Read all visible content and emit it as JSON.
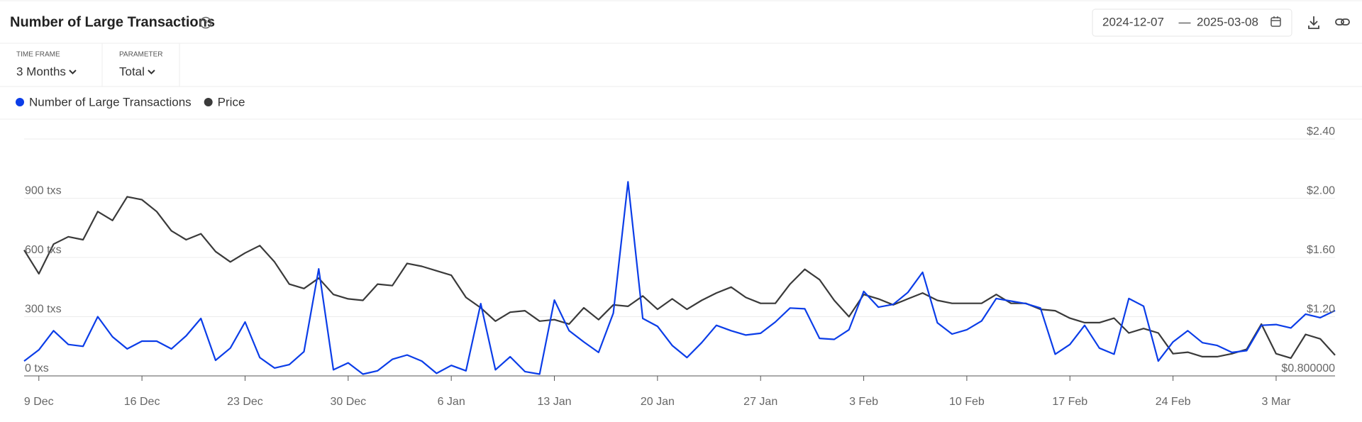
{
  "header": {
    "title": "Number of Large Transactions",
    "date_from": "2024-12-07",
    "date_separator": "—",
    "date_to": "2025-03-08"
  },
  "filters": [
    {
      "label": "TIME FRAME",
      "value": "3 Months"
    },
    {
      "label": "PARAMETER",
      "value": "Total"
    }
  ],
  "chart_data": {
    "type": "line",
    "x": [
      "2024-12-08",
      "2024-12-09",
      "2024-12-10",
      "2024-12-11",
      "2024-12-12",
      "2024-12-13",
      "2024-12-14",
      "2024-12-15",
      "2024-12-16",
      "2024-12-17",
      "2024-12-18",
      "2024-12-19",
      "2024-12-20",
      "2024-12-21",
      "2024-12-22",
      "2024-12-23",
      "2024-12-24",
      "2024-12-25",
      "2024-12-26",
      "2024-12-27",
      "2024-12-28",
      "2024-12-29",
      "2024-12-30",
      "2024-12-31",
      "2025-01-01",
      "2025-01-02",
      "2025-01-03",
      "2025-01-04",
      "2025-01-05",
      "2025-01-06",
      "2025-01-07",
      "2025-01-08",
      "2025-01-09",
      "2025-01-10",
      "2025-01-11",
      "2025-01-12",
      "2025-01-13",
      "2025-01-14",
      "2025-01-15",
      "2025-01-16",
      "2025-01-17",
      "2025-01-18",
      "2025-01-19",
      "2025-01-20",
      "2025-01-21",
      "2025-01-22",
      "2025-01-23",
      "2025-01-24",
      "2025-01-25",
      "2025-01-26",
      "2025-01-27",
      "2025-01-28",
      "2025-01-29",
      "2025-01-30",
      "2025-01-31",
      "2025-02-01",
      "2025-02-02",
      "2025-02-03",
      "2025-02-04",
      "2025-02-05",
      "2025-02-06",
      "2025-02-07",
      "2025-02-08",
      "2025-02-09",
      "2025-02-10",
      "2025-02-11",
      "2025-02-12",
      "2025-02-13",
      "2025-02-14",
      "2025-02-15",
      "2025-02-16",
      "2025-02-17",
      "2025-02-18",
      "2025-02-19",
      "2025-02-20",
      "2025-02-21",
      "2025-02-22",
      "2025-02-23",
      "2025-02-24",
      "2025-02-25",
      "2025-02-26",
      "2025-02-27",
      "2025-02-28",
      "2025-03-01",
      "2025-03-02",
      "2025-03-03",
      "2025-03-04",
      "2025-03-05",
      "2025-03-06",
      "2025-03-07"
    ],
    "xlim": [
      "2024-12-08",
      "2025-03-07"
    ],
    "xticks": [
      {
        "value": "2024-12-09",
        "label": "9 Dec"
      },
      {
        "value": "2024-12-16",
        "label": "16 Dec"
      },
      {
        "value": "2024-12-23",
        "label": "23 Dec"
      },
      {
        "value": "2024-12-30",
        "label": "30 Dec"
      },
      {
        "value": "2025-01-06",
        "label": "6 Jan"
      },
      {
        "value": "2025-01-13",
        "label": "13 Jan"
      },
      {
        "value": "2025-01-20",
        "label": "20 Jan"
      },
      {
        "value": "2025-01-27",
        "label": "27 Jan"
      },
      {
        "value": "2025-02-03",
        "label": "3 Feb"
      },
      {
        "value": "2025-02-10",
        "label": "10 Feb"
      },
      {
        "value": "2025-02-17",
        "label": "17 Feb"
      },
      {
        "value": "2025-02-24",
        "label": "24 Feb"
      },
      {
        "value": "2025-03-03",
        "label": "3 Mar"
      }
    ],
    "ylim": [
      0,
      1200
    ],
    "yticks": [
      {
        "value": 0,
        "label": "0 txs"
      },
      {
        "value": 300,
        "label": "300 txs"
      },
      {
        "value": 600,
        "label": "600 txs"
      },
      {
        "value": 900,
        "label": "900 txs"
      }
    ],
    "y2lim": [
      0.8,
      2.4
    ],
    "y2ticks": [
      {
        "value": 0.8,
        "label": "$0.800000"
      },
      {
        "value": 1.2,
        "label": "$1.20"
      },
      {
        "value": 1.6,
        "label": "$1.60"
      },
      {
        "value": 2.0,
        "label": "$2.00"
      },
      {
        "value": 2.4,
        "label": "$2.40"
      }
    ],
    "grid": true,
    "legend": "top-left",
    "series": [
      {
        "name": "Number of Large Transactions",
        "color": "#0b3de8",
        "axis": "y",
        "values": [
          75,
          132,
          229,
          159,
          150,
          300,
          198,
          137,
          176,
          176,
          137,
          203,
          291,
          79,
          141,
          273,
          93,
          40,
          57,
          123,
          542,
          31,
          66,
          9,
          26,
          84,
          106,
          75,
          13,
          53,
          26,
          366,
          31,
          97,
          22,
          9,
          384,
          229,
          172,
          119,
          318,
          983,
          291,
          251,
          154,
          93,
          168,
          256,
          229,
          207,
          216,
          273,
          344,
          340,
          190,
          185,
          234,
          428,
          348,
          362,
          423,
          525,
          269,
          212,
          234,
          278,
          392,
          379,
          366,
          344,
          110,
          159,
          256,
          141,
          110,
          392,
          353,
          75,
          172,
          229,
          168,
          154,
          119,
          128,
          256,
          260,
          243,
          313,
          295,
          331
        ]
      },
      {
        "name": "Price",
        "color": "#3a3a3a",
        "axis": "y2",
        "values": [
          1.65,
          1.49,
          1.69,
          1.74,
          1.72,
          1.91,
          1.85,
          2.01,
          1.99,
          1.91,
          1.78,
          1.72,
          1.76,
          1.64,
          1.57,
          1.63,
          1.68,
          1.57,
          1.42,
          1.39,
          1.46,
          1.35,
          1.32,
          1.31,
          1.42,
          1.41,
          1.56,
          1.54,
          1.51,
          1.48,
          1.33,
          1.26,
          1.17,
          1.23,
          1.24,
          1.17,
          1.18,
          1.15,
          1.26,
          1.18,
          1.28,
          1.27,
          1.34,
          1.25,
          1.32,
          1.25,
          1.31,
          1.36,
          1.4,
          1.33,
          1.29,
          1.29,
          1.42,
          1.52,
          1.45,
          1.31,
          1.2,
          1.35,
          1.32,
          1.28,
          1.32,
          1.36,
          1.31,
          1.29,
          1.29,
          1.29,
          1.35,
          1.29,
          1.29,
          1.25,
          1.24,
          1.19,
          1.16,
          1.16,
          1.19,
          1.09,
          1.12,
          1.09,
          0.95,
          0.96,
          0.93,
          0.93,
          0.95,
          0.98,
          1.15,
          0.95,
          0.92,
          1.08,
          1.05,
          0.94
        ]
      }
    ]
  }
}
